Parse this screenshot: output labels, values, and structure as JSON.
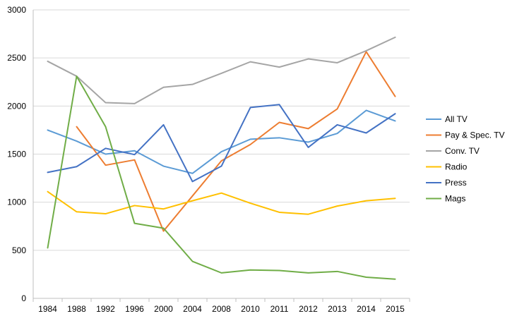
{
  "chart_data": {
    "type": "line",
    "title": "",
    "xlabel": "",
    "ylabel": "",
    "ylim": [
      0,
      3000
    ],
    "yticks": [
      0,
      500,
      1000,
      1500,
      2000,
      2500,
      3000
    ],
    "ytick_labels": [
      "0",
      "500",
      "1000",
      "1500",
      "2000",
      "2500",
      "3000"
    ],
    "grid": true,
    "legend_position": "right",
    "categories": [
      "1984",
      "1988",
      "1992",
      "1996",
      "2000",
      "2004",
      "2008",
      "2010",
      "2011",
      "2012",
      "2013",
      "2014",
      "2015"
    ],
    "series": [
      {
        "name": "All TV",
        "color": "#5b9bd5",
        "values": [
          1750,
          1635,
          1500,
          1535,
          1375,
          1300,
          1525,
          1655,
          1670,
          1625,
          1715,
          1955,
          1845
        ]
      },
      {
        "name": "Pay & Spec. TV",
        "color": "#ed7d31",
        "values": [
          null,
          1785,
          1385,
          1440,
          700,
          1065,
          1430,
          1600,
          1830,
          1765,
          1970,
          2565,
          2100
        ]
      },
      {
        "name": "Conv. TV",
        "color": "#a5a5a5",
        "values": [
          2465,
          2310,
          2035,
          2025,
          2195,
          2225,
          2340,
          2460,
          2405,
          2490,
          2450,
          2575,
          2715
        ]
      },
      {
        "name": "Radio",
        "color": "#ffc000",
        "values": [
          1110,
          900,
          880,
          965,
          930,
          1015,
          1095,
          990,
          895,
          875,
          960,
          1015,
          1040
        ]
      },
      {
        "name": "Press",
        "color": "#4472c4",
        "values": [
          1310,
          1370,
          1560,
          1495,
          1805,
          1215,
          1375,
          1985,
          2015,
          1570,
          1805,
          1720,
          1920
        ]
      },
      {
        "name": "Mags",
        "color": "#70ad47",
        "values": [
          525,
          2310,
          1785,
          780,
          730,
          385,
          265,
          295,
          290,
          265,
          280,
          220,
          200
        ]
      }
    ]
  }
}
